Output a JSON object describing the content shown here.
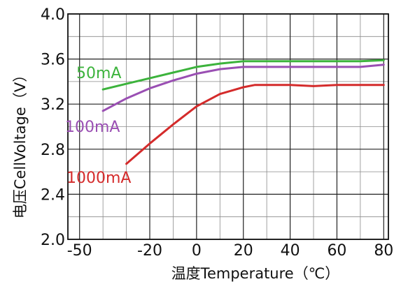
{
  "chart_data": {
    "type": "line",
    "title": "",
    "xlabel": "温度Temperature（℃）",
    "ylabel": "电压CellVoltage（V）",
    "xlim": [
      -55,
      82
    ],
    "ylim": [
      2.0,
      4.0
    ],
    "x_ticks": [
      -50,
      -20,
      0,
      20,
      40,
      60,
      80
    ],
    "x_tick_labels": [
      "-50",
      "-20",
      "0",
      "20",
      "40",
      "60",
      "80"
    ],
    "y_ticks": [
      2.0,
      2.4,
      2.8,
      3.2,
      3.6,
      4.0
    ],
    "y_tick_labels": [
      "2.0",
      "2.4",
      "2.8",
      "3.2",
      "3.6",
      "4.0"
    ],
    "grid": true,
    "series": [
      {
        "name": "50mA",
        "color": "#3cb33c",
        "points": [
          [
            -40,
            3.33
          ],
          [
            -30,
            3.38
          ],
          [
            -20,
            3.43
          ],
          [
            -10,
            3.48
          ],
          [
            0,
            3.53
          ],
          [
            10,
            3.56
          ],
          [
            20,
            3.58
          ],
          [
            30,
            3.58
          ],
          [
            40,
            3.58
          ],
          [
            50,
            3.58
          ],
          [
            60,
            3.58
          ],
          [
            70,
            3.58
          ],
          [
            80,
            3.59
          ]
        ]
      },
      {
        "name": "100mA",
        "color": "#9a4fb3",
        "points": [
          [
            -40,
            3.14
          ],
          [
            -30,
            3.25
          ],
          [
            -20,
            3.34
          ],
          [
            -10,
            3.41
          ],
          [
            0,
            3.47
          ],
          [
            10,
            3.51
          ],
          [
            20,
            3.53
          ],
          [
            30,
            3.53
          ],
          [
            40,
            3.53
          ],
          [
            50,
            3.53
          ],
          [
            60,
            3.53
          ],
          [
            70,
            3.53
          ],
          [
            80,
            3.55
          ]
        ]
      },
      {
        "name": "1000mA",
        "color": "#d42b2b",
        "points": [
          [
            -30,
            2.67
          ],
          [
            -20,
            2.85
          ],
          [
            -10,
            3.02
          ],
          [
            0,
            3.18
          ],
          [
            10,
            3.29
          ],
          [
            20,
            3.35
          ],
          [
            25,
            3.37
          ],
          [
            30,
            3.37
          ],
          [
            40,
            3.37
          ],
          [
            50,
            3.36
          ],
          [
            60,
            3.37
          ],
          [
            70,
            3.37
          ],
          [
            80,
            3.37
          ]
        ]
      }
    ]
  }
}
